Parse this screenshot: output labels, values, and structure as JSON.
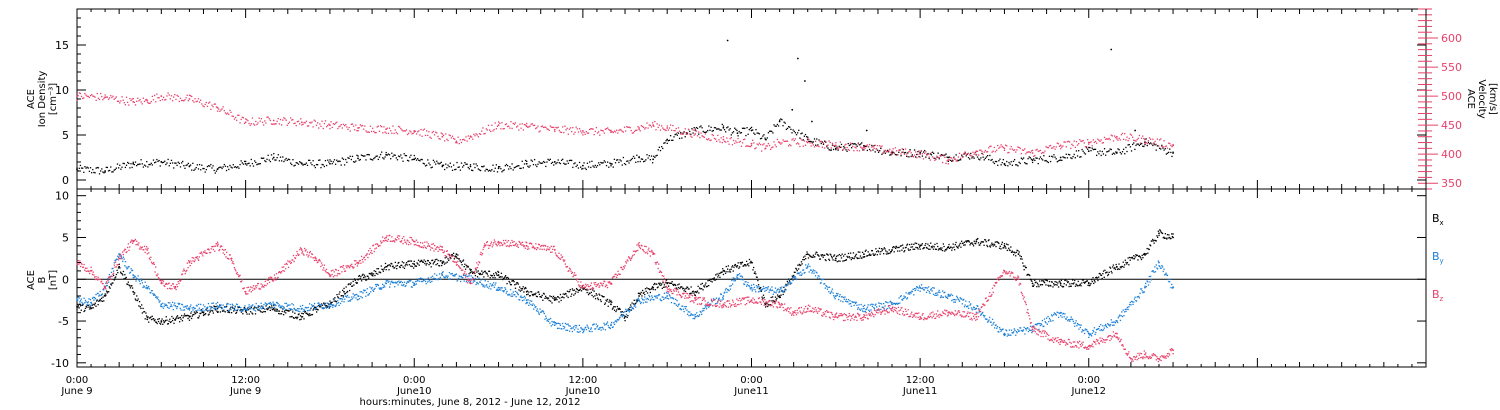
{
  "chart_data": [
    {
      "type": "scatter",
      "panel": "top",
      "ylabel_left": [
        "ACE",
        "Ion Density",
        "[cm⁻³]"
      ],
      "ylabel_right": [
        "ACE",
        "Velocity",
        "[km/s]"
      ],
      "ylim": [
        -1,
        19
      ],
      "yticks": [
        0,
        5,
        10,
        15
      ],
      "y2lim": [
        340,
        650
      ],
      "y2ticks": [
        350,
        400,
        450,
        500,
        550,
        600
      ],
      "series": [
        {
          "role": "density",
          "color": "#000000",
          "points": [
            [
              0,
              1.2
            ],
            [
              2,
              1.0
            ],
            [
              4,
              1.8
            ],
            [
              6,
              2.0
            ],
            [
              8,
              1.5
            ],
            [
              10,
              1.2
            ],
            [
              12,
              1.8
            ],
            [
              14,
              2.5
            ],
            [
              16,
              1.8
            ],
            [
              18,
              1.8
            ],
            [
              20,
              2.4
            ],
            [
              22,
              2.8
            ],
            [
              24,
              2.3
            ],
            [
              26,
              1.5
            ],
            [
              28,
              1.5
            ],
            [
              30,
              1.3
            ],
            [
              32,
              1.8
            ],
            [
              34,
              2.0
            ],
            [
              36,
              1.6
            ],
            [
              38,
              1.8
            ],
            [
              40,
              2.5
            ],
            [
              41,
              2.3
            ],
            [
              42,
              4.5
            ],
            [
              44,
              5.5
            ],
            [
              46,
              5.8
            ],
            [
              47,
              5.2
            ],
            [
              48,
              5.5
            ],
            [
              49,
              4.5
            ],
            [
              50,
              6.5
            ],
            [
              52,
              4.5
            ],
            [
              54,
              3.5
            ],
            [
              56,
              3.8
            ],
            [
              58,
              3.0
            ],
            [
              60,
              3.0
            ],
            [
              62,
              2.5
            ],
            [
              64,
              2.8
            ],
            [
              66,
              1.8
            ],
            [
              68,
              2.2
            ],
            [
              70,
              2.5
            ],
            [
              72,
              3.2
            ],
            [
              74,
              3.0
            ],
            [
              76,
              4.2
            ],
            [
              78,
              3.0
            ]
          ]
        },
        {
          "role": "velocity",
          "color": "#e8406a",
          "points": [
            [
              0,
              500
            ],
            [
              2,
              498
            ],
            [
              4,
              490
            ],
            [
              5,
              492
            ],
            [
              6,
              500
            ],
            [
              8,
              495
            ],
            [
              10,
              480
            ],
            [
              12,
              455
            ],
            [
              14,
              458
            ],
            [
              16,
              455
            ],
            [
              18,
              450
            ],
            [
              20,
              445
            ],
            [
              22,
              443
            ],
            [
              24,
              440
            ],
            [
              26,
              430
            ],
            [
              27,
              422
            ],
            [
              28,
              430
            ],
            [
              30,
              450
            ],
            [
              32,
              448
            ],
            [
              34,
              442
            ],
            [
              36,
              440
            ],
            [
              38,
              438
            ],
            [
              40,
              445
            ],
            [
              41,
              450
            ],
            [
              42,
              445
            ],
            [
              44,
              435
            ],
            [
              46,
              425
            ],
            [
              48,
              418
            ],
            [
              49,
              410
            ],
            [
              50,
              420
            ],
            [
              52,
              420
            ],
            [
              54,
              415
            ],
            [
              56,
              412
            ],
            [
              58,
              405
            ],
            [
              60,
              400
            ],
            [
              62,
              390
            ],
            [
              64,
              405
            ],
            [
              66,
              410
            ],
            [
              68,
              402
            ],
            [
              70,
              415
            ],
            [
              72,
              420
            ],
            [
              74,
              430
            ],
            [
              76,
              425
            ],
            [
              78,
              415
            ]
          ]
        }
      ],
      "spikes": [
        [
          46.3,
          15.5
        ],
        [
          50.9,
          7.8
        ],
        [
          51.3,
          13.5
        ],
        [
          51.8,
          11.0
        ],
        [
          52.3,
          6.5
        ],
        [
          56.2,
          5.5
        ],
        [
          73.6,
          14.5
        ],
        [
          75.3,
          5.5
        ]
      ]
    },
    {
      "type": "line",
      "panel": "bottom",
      "ylabel_left": [
        "ACE",
        "B",
        "[nT]"
      ],
      "ylim": [
        -10.5,
        10.8
      ],
      "yticks": [
        -10,
        -5,
        0,
        5,
        10
      ],
      "legend_position": "right",
      "series": [
        {
          "name_parts": [
            "B",
            "x"
          ],
          "color": "#000000",
          "points": [
            [
              0,
              -3.3
            ],
            [
              1,
              -3.5
            ],
            [
              2,
              -2.0
            ],
            [
              3,
              1.5
            ],
            [
              4,
              -1.5
            ],
            [
              5,
              -4.8
            ],
            [
              6,
              -5.0
            ],
            [
              7,
              -4.8
            ],
            [
              8,
              -4.5
            ],
            [
              9,
              -4.0
            ],
            [
              10,
              -3.5
            ],
            [
              12,
              -3.8
            ],
            [
              14,
              -3.5
            ],
            [
              16,
              -4.5
            ],
            [
              17,
              -3.6
            ],
            [
              18,
              -3.0
            ],
            [
              19,
              -1.5
            ],
            [
              20,
              0
            ],
            [
              21,
              0.5
            ],
            [
              22,
              1.5
            ],
            [
              24,
              1.8
            ],
            [
              26,
              2.0
            ],
            [
              27,
              3.0
            ],
            [
              28,
              0.8
            ],
            [
              30,
              0.5
            ],
            [
              32,
              -1.5
            ],
            [
              34,
              -2.5
            ],
            [
              36,
              -1.0
            ],
            [
              38,
              -3.0
            ],
            [
              39,
              -4.5
            ],
            [
              40,
              -2.0
            ],
            [
              41,
              -1.0
            ],
            [
              42,
              -0.5
            ],
            [
              44,
              -1.5
            ],
            [
              46,
              1.0
            ],
            [
              48,
              2.0
            ],
            [
              49,
              -3.0
            ],
            [
              50,
              -2.0
            ],
            [
              52,
              3.0
            ],
            [
              54,
              2.5
            ],
            [
              56,
              3.0
            ],
            [
              58,
              3.5
            ],
            [
              60,
              4.0
            ],
            [
              62,
              3.8
            ],
            [
              64,
              4.5
            ],
            [
              66,
              4.0
            ],
            [
              67,
              3.0
            ],
            [
              68,
              -0.5
            ],
            [
              70,
              -0.5
            ],
            [
              72,
              -0.5
            ],
            [
              74,
              1.5
            ],
            [
              76,
              3.0
            ],
            [
              77,
              5.5
            ],
            [
              78,
              5.0
            ]
          ]
        },
        {
          "name_parts": [
            "B",
            "y"
          ],
          "color": "#1a7fd8",
          "points": [
            [
              0,
              -2.5
            ],
            [
              1,
              -2.8
            ],
            [
              2,
              -1.0
            ],
            [
              3,
              3.0
            ],
            [
              4,
              0.5
            ],
            [
              5,
              -1.0
            ],
            [
              6,
              -3.0
            ],
            [
              8,
              -3.5
            ],
            [
              10,
              -3.2
            ],
            [
              12,
              -3.5
            ],
            [
              14,
              -3.0
            ],
            [
              16,
              -3.5
            ],
            [
              18,
              -3.0
            ],
            [
              20,
              -2.0
            ],
            [
              22,
              -0.5
            ],
            [
              24,
              -0.5
            ],
            [
              26,
              0.5
            ],
            [
              28,
              0
            ],
            [
              30,
              -1.0
            ],
            [
              32,
              -2.5
            ],
            [
              34,
              -5.5
            ],
            [
              36,
              -6.0
            ],
            [
              38,
              -5.5
            ],
            [
              40,
              -2.5
            ],
            [
              42,
              -2.0
            ],
            [
              44,
              -4.5
            ],
            [
              45,
              -3.0
            ],
            [
              46,
              -2.0
            ],
            [
              47,
              0.5
            ],
            [
              48,
              -1.0
            ],
            [
              50,
              -1.5
            ],
            [
              52,
              1.5
            ],
            [
              54,
              -2.0
            ],
            [
              56,
              -3.5
            ],
            [
              58,
              -3.0
            ],
            [
              60,
              -1.0
            ],
            [
              62,
              -2.0
            ],
            [
              64,
              -3.5
            ],
            [
              66,
              -6.5
            ],
            [
              68,
              -6.0
            ],
            [
              70,
              -4.0
            ],
            [
              72,
              -6.5
            ],
            [
              74,
              -5.0
            ],
            [
              76,
              -1.0
            ],
            [
              77,
              2.0
            ],
            [
              78,
              -1.0
            ]
          ]
        },
        {
          "name_parts": [
            "B",
            "z"
          ],
          "color": "#e8406a",
          "points": [
            [
              0,
              2.0
            ],
            [
              1,
              1.0
            ],
            [
              2,
              -1.0
            ],
            [
              3,
              2.5
            ],
            [
              4,
              4.5
            ],
            [
              5,
              3.5
            ],
            [
              6,
              -0.5
            ],
            [
              7,
              -1.0
            ],
            [
              8,
              2.0
            ],
            [
              10,
              4.0
            ],
            [
              11,
              2.5
            ],
            [
              12,
              -1.5
            ],
            [
              14,
              0
            ],
            [
              16,
              3.5
            ],
            [
              17,
              2.5
            ],
            [
              18,
              0.5
            ],
            [
              20,
              2.0
            ],
            [
              22,
              5.0
            ],
            [
              24,
              4.5
            ],
            [
              26,
              3.5
            ],
            [
              27,
              2.0
            ],
            [
              28,
              -0.5
            ],
            [
              29,
              4.0
            ],
            [
              30,
              4.5
            ],
            [
              32,
              4.0
            ],
            [
              34,
              3.5
            ],
            [
              36,
              -1.0
            ],
            [
              38,
              -0.5
            ],
            [
              40,
              4.0
            ],
            [
              41,
              3.0
            ],
            [
              42,
              -1.0
            ],
            [
              44,
              -2.5
            ],
            [
              46,
              -3.0
            ],
            [
              48,
              -2.5
            ],
            [
              50,
              -3.0
            ],
            [
              51,
              -4.0
            ],
            [
              52,
              -3.5
            ],
            [
              54,
              -4.5
            ],
            [
              56,
              -4.5
            ],
            [
              58,
              -3.5
            ],
            [
              60,
              -4.5
            ],
            [
              62,
              -4.0
            ],
            [
              64,
              -4.5
            ],
            [
              66,
              1.0
            ],
            [
              67,
              0
            ],
            [
              68,
              -6.0
            ],
            [
              70,
              -7.5
            ],
            [
              72,
              -8.0
            ],
            [
              74,
              -6.5
            ],
            [
              75,
              -9.5
            ],
            [
              76,
              -9.0
            ],
            [
              77,
              -9.5
            ],
            [
              78,
              -8.5
            ]
          ]
        }
      ]
    }
  ],
  "x_axis": {
    "range_hours": [
      0,
      96
    ],
    "tick_labels": [
      {
        "hour": 0,
        "time": "0:00",
        "day": "June 9"
      },
      {
        "hour": 12,
        "time": "12:00",
        "day": "June 9"
      },
      {
        "hour": 24,
        "time": "0:00",
        "day": "June10"
      },
      {
        "hour": 36,
        "time": "12:00",
        "day": "June10"
      },
      {
        "hour": 48,
        "time": "0:00",
        "day": "June11"
      },
      {
        "hour": 60,
        "time": "12:00",
        "day": "June11"
      },
      {
        "hour": 72,
        "time": "0:00",
        "day": "June12"
      }
    ],
    "title": "hours:minutes, June  8, 2012 - June 12, 2012"
  }
}
